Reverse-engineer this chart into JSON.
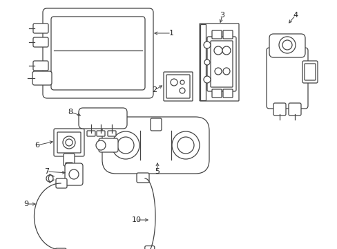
{
  "bg_color": "#ffffff",
  "line_color": "#444444",
  "label_color": "#222222",
  "fig_width": 4.89,
  "fig_height": 3.6,
  "dpi": 100
}
